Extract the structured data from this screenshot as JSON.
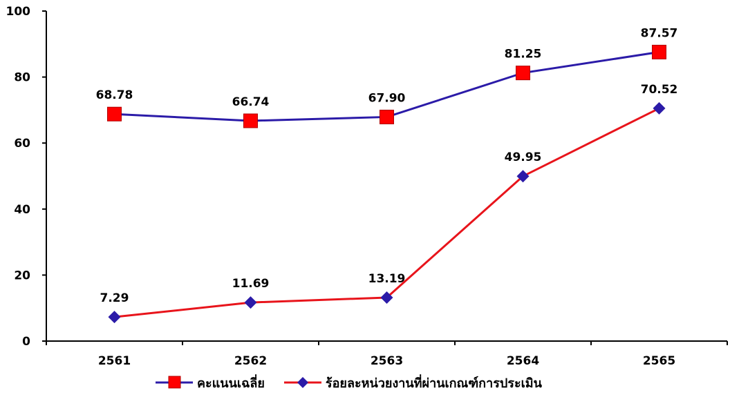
{
  "chart_data": {
    "type": "line",
    "categories": [
      "2561",
      "2562",
      "2563",
      "2564",
      "2565"
    ],
    "series": [
      {
        "name": "คะแนนเฉลี่ย",
        "values": [
          68.78,
          66.74,
          67.9,
          81.25,
          87.57
        ],
        "labels": [
          "68.78",
          "66.74",
          "67.90",
          "81.25",
          "87.57"
        ],
        "line_color": "#2B1BA8",
        "marker": "square",
        "marker_color": "#FF0000"
      },
      {
        "name": "ร้อยละหน่วยงานที่ผ่านเกณฑ์การประเมิน",
        "values": [
          7.29,
          11.69,
          13.19,
          49.95,
          70.52
        ],
        "labels": [
          "7.29",
          "11.69",
          "13.19",
          "49.95",
          "70.52"
        ],
        "line_color": "#E8141B",
        "marker": "diamond",
        "marker_color": "#2B1BA8"
      }
    ],
    "yticks": [
      "0",
      "20",
      "40",
      "60",
      "80",
      "100"
    ],
    "ylim": [
      0,
      100
    ],
    "grid": false,
    "legend": "bottom"
  }
}
